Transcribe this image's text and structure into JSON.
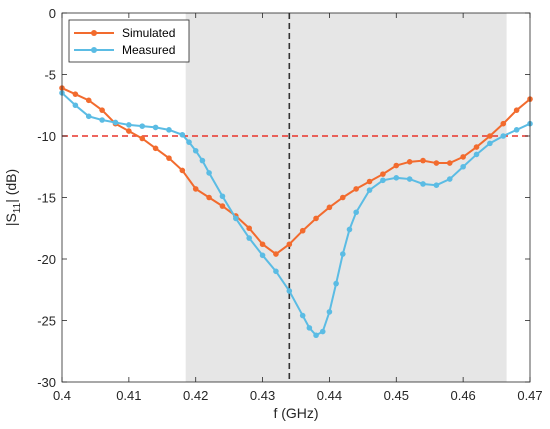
{
  "chart_data": {
    "type": "line",
    "title": "",
    "xlabel": "f (GHz)",
    "ylabel": {
      "pre": "|S",
      "sub": "11",
      "post": "| (dB)"
    },
    "xlim": [
      0.4,
      0.47
    ],
    "ylim": [
      -30,
      0
    ],
    "xticks": [
      0.4,
      0.41,
      0.42,
      0.43,
      0.44,
      0.45,
      0.46,
      0.47
    ],
    "yticks": [
      0,
      -5,
      -10,
      -15,
      -20,
      -25,
      -30
    ],
    "grid": false,
    "legend": "top-left",
    "shaded_band": [
      0.4185,
      0.4665
    ],
    "reference_vline": 0.434,
    "reference_hline": -10,
    "series": [
      {
        "name": "Simulated",
        "color": "#f26b2e",
        "marker": "circle",
        "x": [
          0.4,
          0.402,
          0.404,
          0.406,
          0.408,
          0.41,
          0.412,
          0.414,
          0.416,
          0.418,
          0.42,
          0.422,
          0.424,
          0.426,
          0.428,
          0.43,
          0.432,
          0.434,
          0.436,
          0.438,
          0.44,
          0.442,
          0.444,
          0.446,
          0.448,
          0.45,
          0.452,
          0.454,
          0.456,
          0.458,
          0.46,
          0.462,
          0.464,
          0.466,
          0.468,
          0.47
        ],
        "y": [
          -6.1,
          -6.6,
          -7.1,
          -7.9,
          -9.0,
          -9.6,
          -10.2,
          -11.0,
          -11.8,
          -12.8,
          -14.3,
          -15.0,
          -15.7,
          -16.5,
          -17.5,
          -18.8,
          -19.6,
          -18.8,
          -17.7,
          -16.7,
          -15.8,
          -15.0,
          -14.3,
          -13.7,
          -13.1,
          -12.4,
          -12.1,
          -12.0,
          -12.2,
          -12.2,
          -11.7,
          -10.9,
          -10.0,
          -9.0,
          -7.9,
          -7.0
        ]
      },
      {
        "name": "Measured",
        "color": "#5bbce4",
        "marker": "circle",
        "x": [
          0.4,
          0.402,
          0.404,
          0.406,
          0.408,
          0.41,
          0.412,
          0.414,
          0.416,
          0.418,
          0.419,
          0.42,
          0.421,
          0.422,
          0.424,
          0.426,
          0.428,
          0.43,
          0.432,
          0.434,
          0.436,
          0.437,
          0.438,
          0.439,
          0.44,
          0.441,
          0.442,
          0.443,
          0.444,
          0.446,
          0.448,
          0.45,
          0.452,
          0.454,
          0.456,
          0.458,
          0.46,
          0.462,
          0.464,
          0.466,
          0.468,
          0.47
        ],
        "y": [
          -6.5,
          -7.5,
          -8.4,
          -8.7,
          -8.9,
          -9.1,
          -9.2,
          -9.3,
          -9.5,
          -9.9,
          -10.5,
          -11.2,
          -12.0,
          -13.0,
          -14.9,
          -16.7,
          -18.3,
          -19.7,
          -21.0,
          -22.6,
          -24.6,
          -25.6,
          -26.2,
          -25.9,
          -24.3,
          -22.0,
          -19.6,
          -17.6,
          -16.2,
          -14.4,
          -13.6,
          -13.4,
          -13.5,
          -13.9,
          -14.0,
          -13.5,
          -12.5,
          -11.5,
          -10.6,
          -10.0,
          -9.5,
          -9.0
        ]
      }
    ]
  }
}
